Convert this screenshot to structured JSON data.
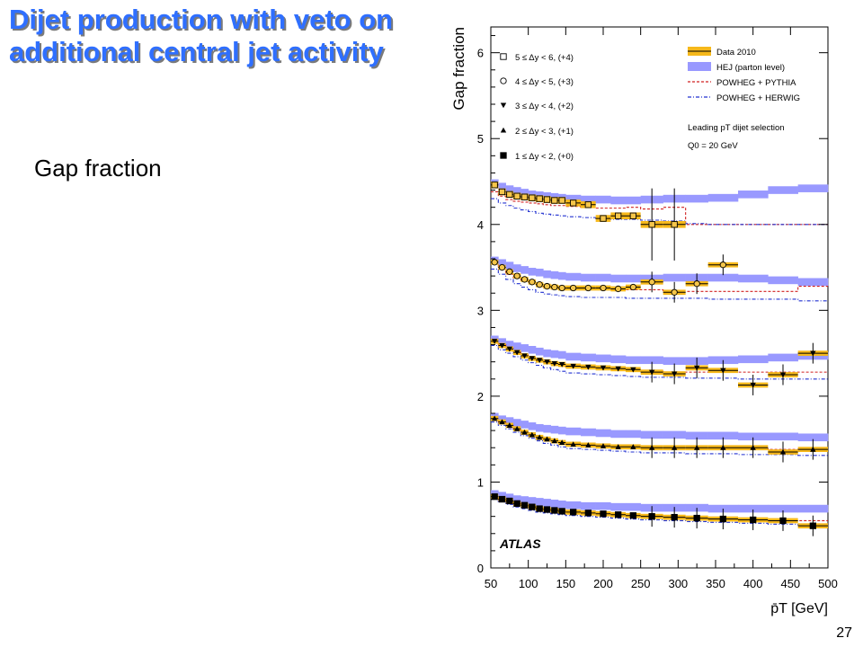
{
  "slide": {
    "title": "Dijet production with veto on additional central jet activity",
    "bullet": "Gap fraction",
    "page_number": "27"
  },
  "chart_data": {
    "type": "scatter",
    "experiment": "ATLAS",
    "xlabel": "p̄T [GeV]",
    "ylabel": "Gap fraction",
    "xlim": [
      50,
      500
    ],
    "ylim": [
      0,
      6.3
    ],
    "xticks": [
      50,
      100,
      150,
      200,
      250,
      300,
      350,
      400,
      450,
      500
    ],
    "yticks": [
      0,
      1,
      2,
      3,
      4,
      5,
      6
    ],
    "grid": false,
    "legend_placement": "top",
    "colors": {
      "data_band": "#f6b81a",
      "hej_band": "#9999ff",
      "powheg_pythia": "#d02020",
      "powheg_herwig": "#2030d0",
      "title": "#2f6fff"
    },
    "legend_models": [
      {
        "key": "data",
        "label": "Data 2010"
      },
      {
        "key": "hej",
        "label": "HEJ (parton level)"
      },
      {
        "key": "pythia",
        "label": "POWHEG + PYTHIA"
      },
      {
        "key": "herwig",
        "label": "POWHEG + HERWIG"
      }
    ],
    "selection_text": [
      "Leading pT dijet selection",
      "Q0 = 20 GeV"
    ],
    "x_bins": [
      [
        50,
        60
      ],
      [
        60,
        70
      ],
      [
        70,
        80
      ],
      [
        80,
        90
      ],
      [
        90,
        100
      ],
      [
        100,
        110
      ],
      [
        110,
        120
      ],
      [
        120,
        130
      ],
      [
        130,
        140
      ],
      [
        140,
        150
      ],
      [
        150,
        170
      ],
      [
        170,
        190
      ],
      [
        190,
        210
      ],
      [
        210,
        230
      ],
      [
        230,
        250
      ],
      [
        250,
        280
      ],
      [
        280,
        310
      ],
      [
        310,
        340
      ],
      [
        340,
        380
      ],
      [
        380,
        420
      ],
      [
        420,
        460
      ],
      [
        460,
        500
      ]
    ],
    "series": [
      {
        "name": "1 ≤ Δy < 2, (+0)",
        "marker": "square-filled",
        "data": [
          0.83,
          0.8,
          0.78,
          0.75,
          0.73,
          0.71,
          0.69,
          0.68,
          0.67,
          0.66,
          0.65,
          0.64,
          0.63,
          0.62,
          0.61,
          0.6,
          0.59,
          0.58,
          0.57,
          0.56,
          0.55,
          0.49
        ],
        "hej": [
          0.86,
          0.84,
          0.82,
          0.8,
          0.79,
          0.78,
          0.77,
          0.76,
          0.75,
          0.74,
          0.73,
          0.72,
          0.72,
          0.71,
          0.71,
          0.7,
          0.7,
          0.7,
          0.69,
          0.69,
          0.69,
          0.69
        ],
        "pythia": [
          0.83,
          0.8,
          0.78,
          0.75,
          0.73,
          0.71,
          0.69,
          0.68,
          0.67,
          0.66,
          0.65,
          0.64,
          0.63,
          0.62,
          0.61,
          0.6,
          0.59,
          0.58,
          0.57,
          0.56,
          0.55,
          0.55
        ],
        "herwig": [
          0.8,
          0.77,
          0.74,
          0.71,
          0.69,
          0.67,
          0.65,
          0.64,
          0.63,
          0.62,
          0.61,
          0.6,
          0.59,
          0.58,
          0.57,
          0.56,
          0.55,
          0.54,
          0.53,
          0.52,
          0.51,
          0.5
        ]
      },
      {
        "name": "2 ≤ Δy < 3, (+1)",
        "marker": "triangle-up-filled",
        "data": [
          1.74,
          1.7,
          1.66,
          1.62,
          1.58,
          1.55,
          1.52,
          1.5,
          1.48,
          1.46,
          1.44,
          1.43,
          1.42,
          1.41,
          1.41,
          1.4,
          1.4,
          1.4,
          1.4,
          1.4,
          1.35,
          1.38
        ],
        "hej": [
          1.76,
          1.73,
          1.71,
          1.69,
          1.67,
          1.65,
          1.63,
          1.62,
          1.61,
          1.6,
          1.59,
          1.58,
          1.57,
          1.56,
          1.56,
          1.55,
          1.55,
          1.54,
          1.54,
          1.53,
          1.53,
          1.52
        ],
        "pythia": [
          1.74,
          1.7,
          1.66,
          1.62,
          1.58,
          1.55,
          1.52,
          1.5,
          1.48,
          1.46,
          1.44,
          1.43,
          1.42,
          1.41,
          1.41,
          1.4,
          1.4,
          1.4,
          1.39,
          1.39,
          1.38,
          1.38
        ],
        "herwig": [
          1.7,
          1.66,
          1.62,
          1.58,
          1.54,
          1.51,
          1.48,
          1.45,
          1.43,
          1.41,
          1.39,
          1.38,
          1.37,
          1.36,
          1.35,
          1.34,
          1.34,
          1.33,
          1.33,
          1.32,
          1.32,
          1.31
        ]
      },
      {
        "name": "3 ≤ Δy < 4, (+2)",
        "marker": "triangle-down-filled",
        "data": [
          2.64,
          2.59,
          2.55,
          2.51,
          2.47,
          2.44,
          2.42,
          2.4,
          2.38,
          2.37,
          2.35,
          2.34,
          2.33,
          2.32,
          2.31,
          2.28,
          2.26,
          2.33,
          2.3,
          2.13,
          2.25,
          2.5
        ],
        "hej": [
          2.66,
          2.63,
          2.6,
          2.58,
          2.56,
          2.54,
          2.52,
          2.5,
          2.49,
          2.48,
          2.46,
          2.45,
          2.44,
          2.43,
          2.42,
          2.42,
          2.41,
          2.41,
          2.42,
          2.43,
          2.45,
          2.47
        ],
        "pythia": [
          2.64,
          2.6,
          2.56,
          2.52,
          2.48,
          2.45,
          2.42,
          2.4,
          2.38,
          2.36,
          2.34,
          2.33,
          2.32,
          2.31,
          2.3,
          2.29,
          2.28,
          2.28,
          2.28,
          2.28,
          2.28,
          2.28
        ],
        "herwig": [
          2.59,
          2.54,
          2.5,
          2.46,
          2.42,
          2.39,
          2.36,
          2.33,
          2.31,
          2.29,
          2.27,
          2.26,
          2.25,
          2.24,
          2.23,
          2.22,
          2.22,
          2.21,
          2.21,
          2.2,
          2.2,
          2.2
        ]
      },
      {
        "name": "4 ≤ Δy < 5, (+3)",
        "marker": "circle-open",
        "data": [
          3.56,
          3.5,
          3.45,
          3.4,
          3.36,
          3.33,
          3.3,
          3.28,
          3.27,
          3.26,
          3.26,
          3.26,
          3.26,
          3.25,
          3.27,
          3.33,
          3.21,
          3.31,
          3.53,
          null,
          null,
          null
        ],
        "hej": [
          3.58,
          3.55,
          3.52,
          3.49,
          3.47,
          3.45,
          3.44,
          3.42,
          3.41,
          3.4,
          3.39,
          3.38,
          3.38,
          3.37,
          3.37,
          3.37,
          3.38,
          3.38,
          3.38,
          3.37,
          3.35,
          3.33
        ],
        "pythia": [
          3.55,
          3.48,
          3.42,
          3.38,
          3.34,
          3.31,
          3.29,
          3.27,
          3.26,
          3.25,
          3.24,
          3.24,
          3.24,
          3.24,
          3.24,
          3.24,
          3.22,
          3.22,
          3.22,
          3.22,
          3.22,
          3.28
        ],
        "herwig": [
          3.48,
          3.42,
          3.36,
          3.31,
          3.27,
          3.24,
          3.21,
          3.19,
          3.18,
          3.17,
          3.16,
          3.15,
          3.15,
          3.15,
          3.14,
          3.14,
          3.14,
          3.14,
          3.13,
          3.13,
          3.13,
          3.11
        ]
      },
      {
        "name": "5 ≤ Δy < 6, (+4)",
        "marker": "square-open",
        "data": [
          4.46,
          4.38,
          4.35,
          4.33,
          4.32,
          4.31,
          4.3,
          4.29,
          4.28,
          4.28,
          4.25,
          4.23,
          4.07,
          4.1,
          4.1,
          4.0,
          4.0,
          null,
          null,
          null,
          null,
          null
        ],
        "hej": [
          4.48,
          4.44,
          4.41,
          4.39,
          4.37,
          4.35,
          4.34,
          4.33,
          4.32,
          4.31,
          4.3,
          4.29,
          4.29,
          4.28,
          4.28,
          4.29,
          4.3,
          4.3,
          4.31,
          4.35,
          4.4,
          4.42
        ],
        "pythia": [
          4.38,
          4.33,
          4.29,
          4.27,
          4.26,
          4.25,
          4.24,
          4.23,
          4.22,
          4.22,
          4.21,
          4.2,
          4.19,
          4.19,
          4.2,
          4.18,
          4.2,
          4.0,
          4.0,
          4.0,
          4.0,
          4.0
        ],
        "herwig": [
          4.3,
          4.25,
          4.22,
          4.19,
          4.17,
          4.15,
          4.13,
          4.12,
          4.11,
          4.1,
          4.09,
          4.08,
          4.07,
          4.06,
          4.06,
          4.05,
          4.04,
          4.01,
          4.0,
          4.0,
          4.0,
          4.0
        ]
      }
    ]
  }
}
